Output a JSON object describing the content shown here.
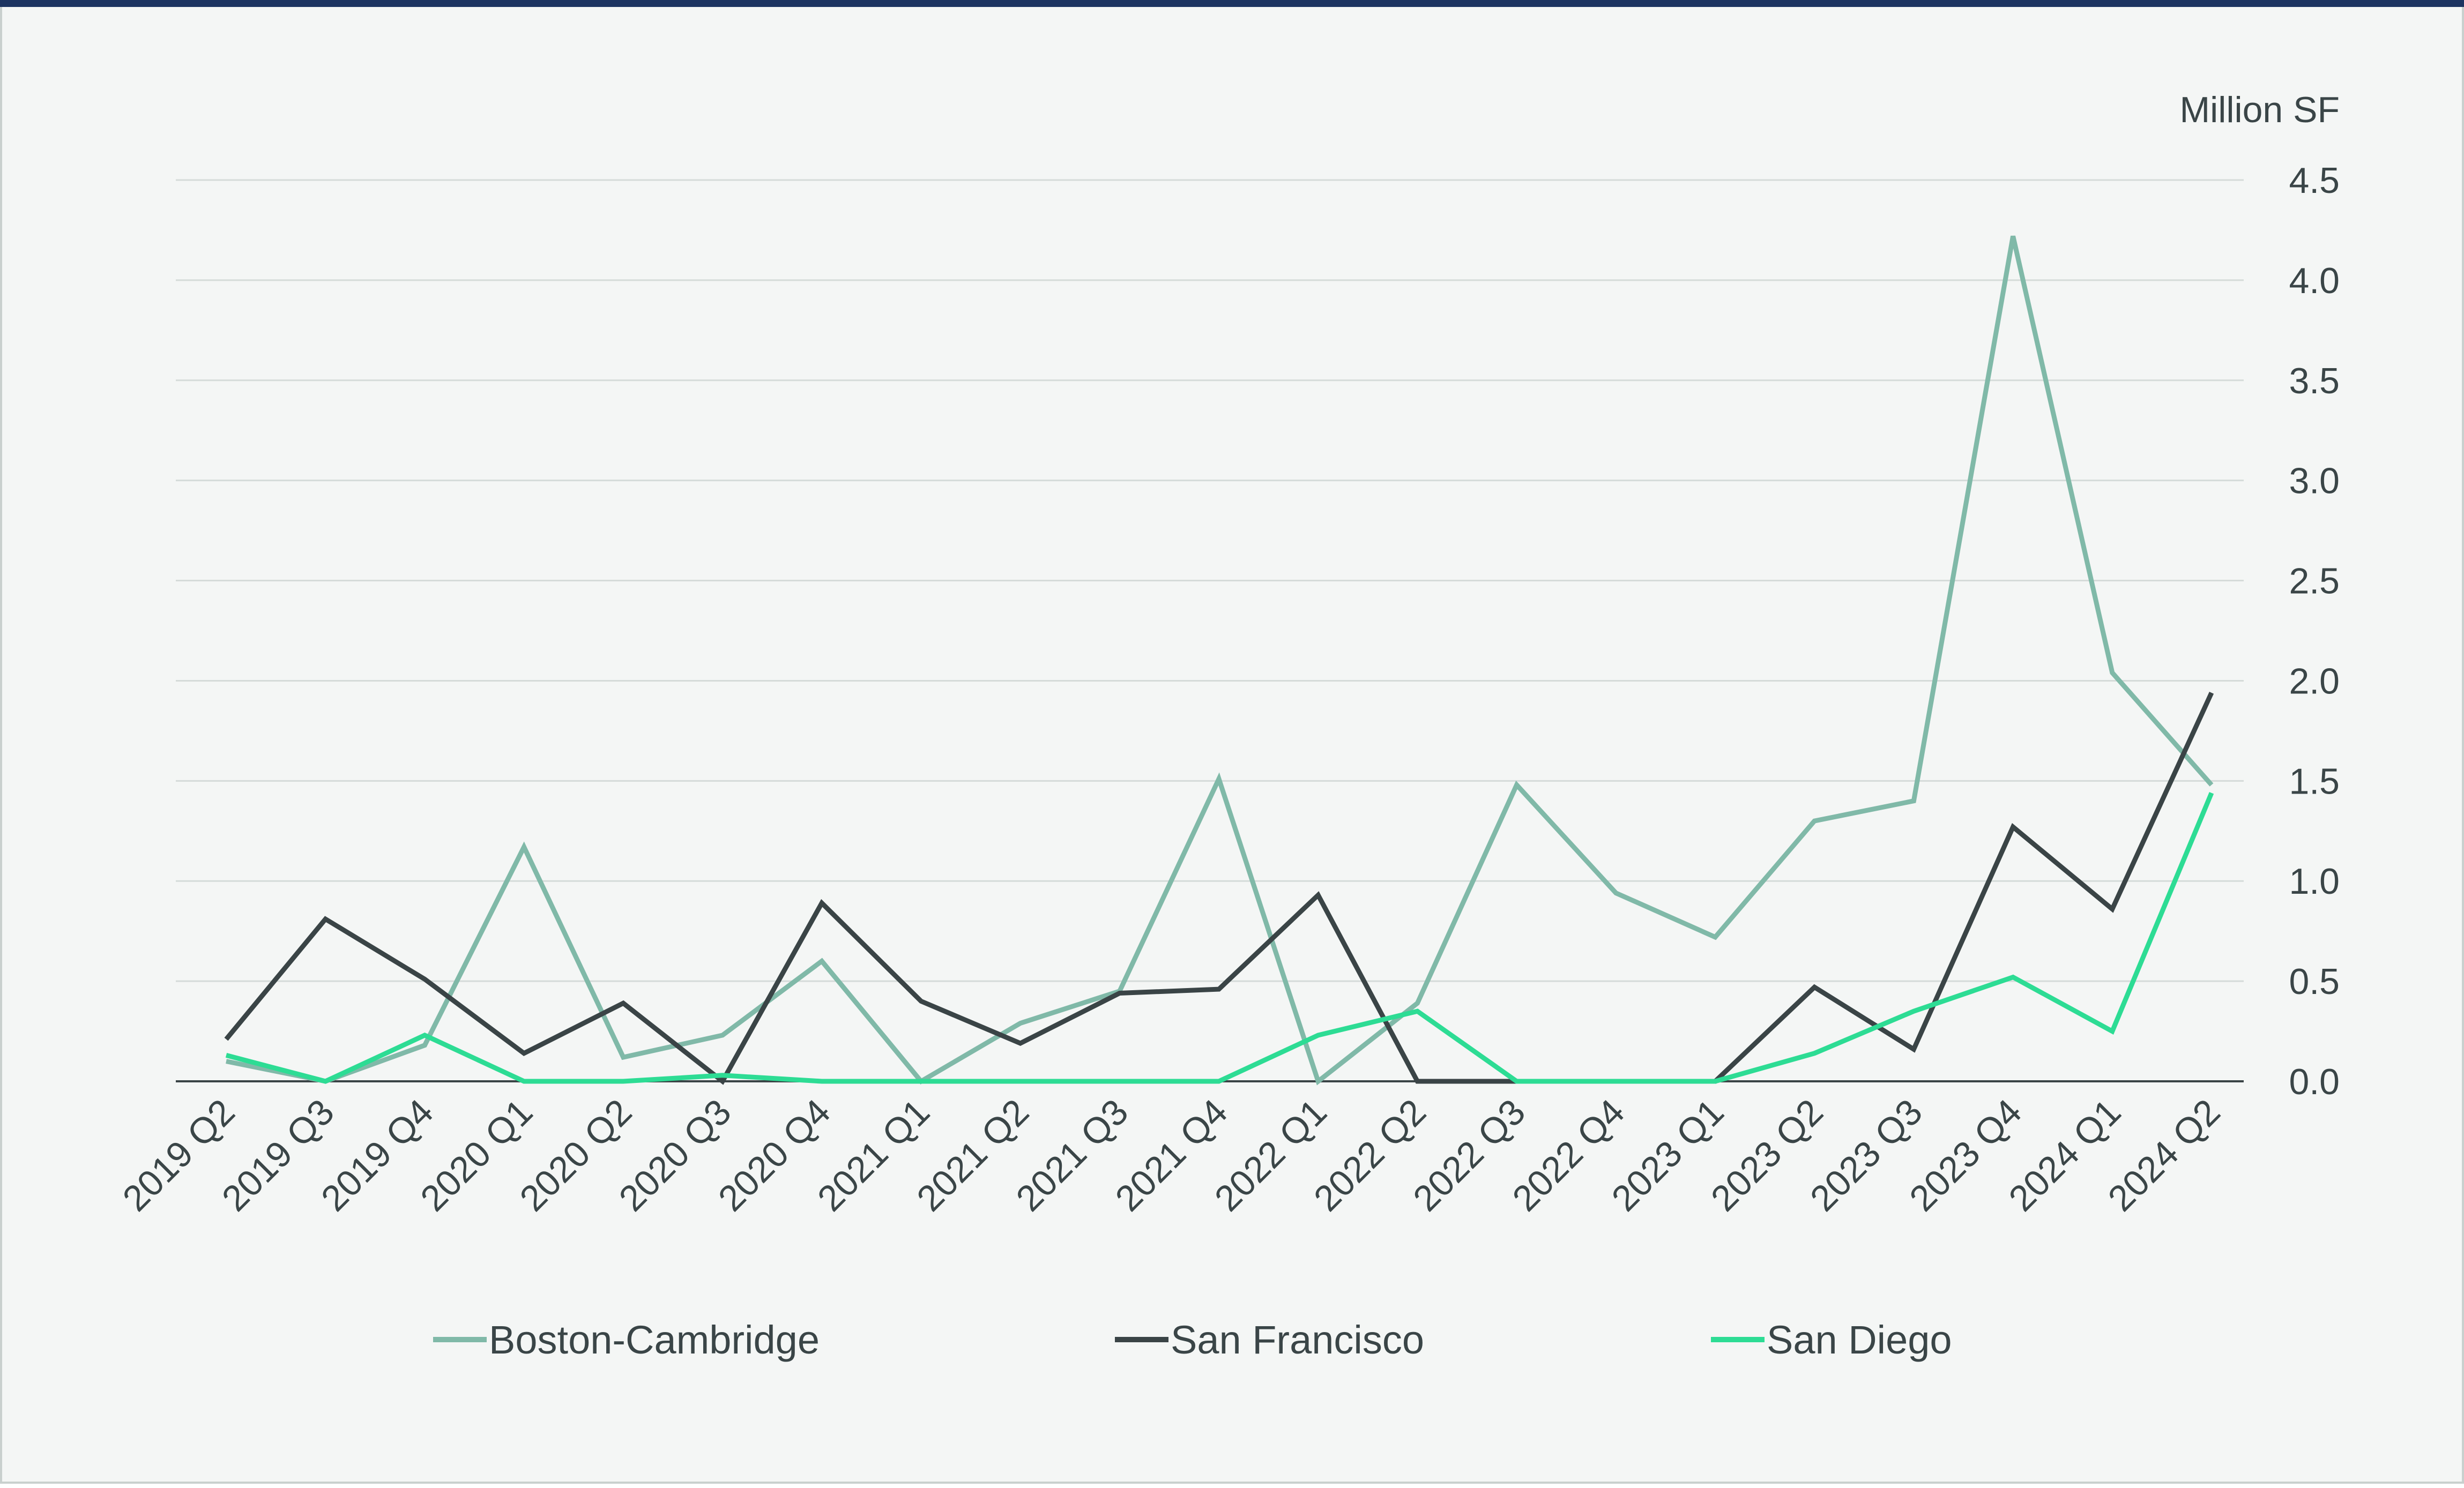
{
  "chart_data": {
    "type": "line",
    "unit_label": "Million SF",
    "categories": [
      "2019 Q2",
      "2019 Q3",
      "2019 Q4",
      "2020 Q1",
      "2020 Q2",
      "2020 Q3",
      "2020 Q4",
      "2021 Q1",
      "2021 Q2",
      "2021 Q3",
      "2021 Q4",
      "2022 Q1",
      "2022 Q2",
      "2022 Q3",
      "2022 Q4",
      "2023 Q1",
      "2023 Q2",
      "2023 Q3",
      "2023 Q4",
      "2024 Q1",
      "2024 Q2"
    ],
    "ylim": [
      0,
      4.5
    ],
    "y_ticks": [
      "0.0",
      "0.5",
      "1.0",
      "1.5",
      "2.0",
      "2.5",
      "3.0",
      "3.5",
      "4.0",
      "4.5"
    ],
    "y_axis_side": "right",
    "grid": true,
    "legend_position": "bottom",
    "series": [
      {
        "name": "Boston-Cambridge",
        "color": "#80b9a8",
        "values": [
          0.1,
          0.0,
          0.18,
          1.17,
          0.12,
          0.23,
          0.6,
          0.0,
          0.29,
          0.45,
          1.51,
          0.0,
          0.39,
          1.48,
          0.94,
          0.72,
          1.3,
          1.4,
          4.22,
          2.04,
          1.48
        ]
      },
      {
        "name": "San Francisco",
        "color": "#3a4446",
        "values": [
          0.21,
          0.81,
          0.51,
          0.14,
          0.39,
          0.0,
          0.89,
          0.4,
          0.19,
          0.44,
          0.46,
          0.93,
          0.0,
          0.0,
          0.0,
          0.0,
          0.47,
          0.16,
          1.27,
          0.86,
          1.94
        ]
      },
      {
        "name": "San Diego",
        "color": "#2ddc94",
        "values": [
          0.13,
          0.0,
          0.23,
          0.0,
          0.0,
          0.03,
          0.0,
          0.0,
          0.0,
          0.0,
          0.0,
          0.23,
          0.35,
          0.0,
          0.0,
          0.0,
          0.14,
          0.35,
          0.52,
          0.25,
          1.44
        ]
      }
    ]
  }
}
